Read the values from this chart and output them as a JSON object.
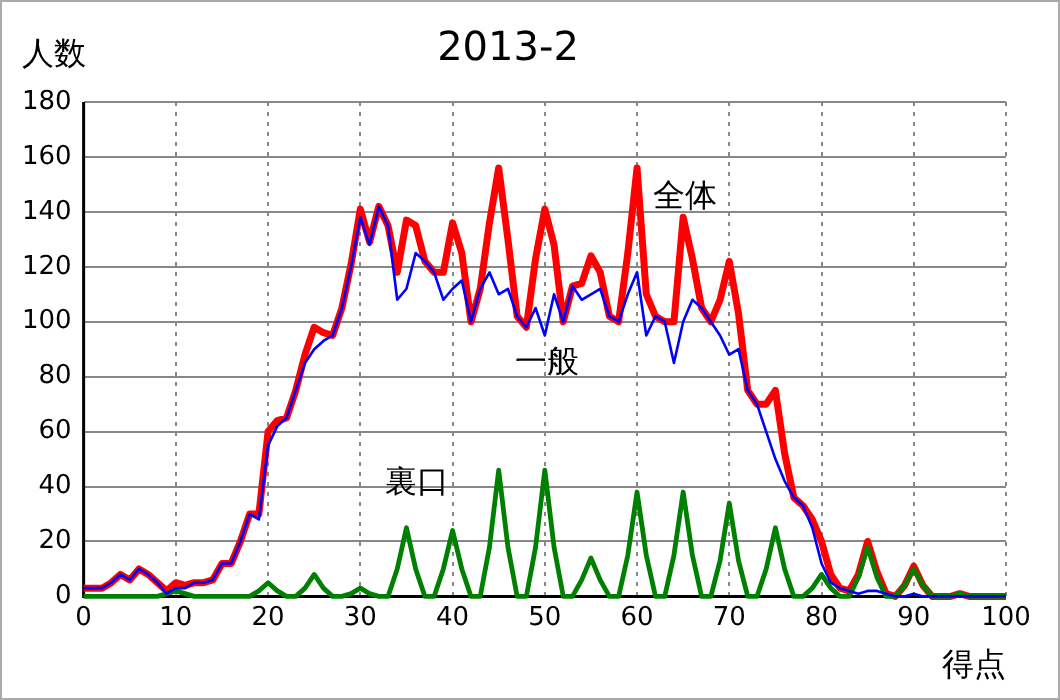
{
  "chart_data": {
    "type": "line",
    "title": "2013-2",
    "xlabel": "得点",
    "ylabel": "人数",
    "x": [
      0,
      1,
      2,
      3,
      4,
      5,
      6,
      7,
      8,
      9,
      10,
      11,
      12,
      13,
      14,
      15,
      16,
      17,
      18,
      19,
      20,
      21,
      22,
      23,
      24,
      25,
      26,
      27,
      28,
      29,
      30,
      31,
      32,
      33,
      34,
      35,
      36,
      37,
      38,
      39,
      40,
      41,
      42,
      43,
      44,
      45,
      46,
      47,
      48,
      49,
      50,
      51,
      52,
      53,
      54,
      55,
      56,
      57,
      58,
      59,
      60,
      61,
      62,
      63,
      64,
      65,
      66,
      67,
      68,
      69,
      70,
      71,
      72,
      73,
      74,
      75,
      76,
      77,
      78,
      79,
      80,
      81,
      82,
      83,
      84,
      85,
      86,
      87,
      88,
      89,
      90,
      91,
      92,
      93,
      94,
      95,
      96,
      97,
      98,
      99,
      100
    ],
    "series": [
      {
        "name": "全体",
        "color": "#ff0000",
        "values": [
          3,
          3,
          3,
          5,
          8,
          6,
          10,
          8,
          5,
          2,
          5,
          4,
          5,
          5,
          6,
          12,
          12,
          20,
          30,
          30,
          60,
          64,
          65,
          75,
          88,
          98,
          96,
          95,
          105,
          121,
          141,
          129,
          142,
          135,
          118,
          137,
          135,
          122,
          118,
          118,
          136,
          125,
          100,
          112,
          136,
          156,
          130,
          102,
          98,
          123,
          141,
          128,
          100,
          113,
          114,
          124,
          118,
          102,
          100,
          125,
          156,
          110,
          102,
          100,
          100,
          138,
          123,
          105,
          100,
          108,
          122,
          103,
          75,
          70,
          70,
          75,
          52,
          36,
          33,
          28,
          20,
          8,
          3,
          2,
          8,
          20,
          9,
          1,
          0,
          4,
          11,
          4,
          0,
          0,
          0,
          1,
          0,
          0,
          0,
          0,
          0
        ]
      },
      {
        "name": "一般",
        "color": "#0000ff",
        "values": [
          3,
          3,
          3,
          5,
          8,
          6,
          10,
          8,
          5,
          1,
          3,
          3,
          5,
          5,
          6,
          12,
          12,
          20,
          30,
          28,
          55,
          62,
          65,
          75,
          85,
          90,
          93,
          95,
          105,
          120,
          138,
          128,
          142,
          135,
          108,
          112,
          125,
          122,
          118,
          108,
          112,
          115,
          100,
          112,
          118,
          110,
          112,
          102,
          98,
          105,
          95,
          110,
          100,
          113,
          108,
          110,
          112,
          102,
          100,
          110,
          118,
          95,
          102,
          100,
          85,
          100,
          108,
          105,
          100,
          95,
          88,
          90,
          75,
          70,
          60,
          50,
          42,
          36,
          33,
          25,
          12,
          5,
          3,
          2,
          1,
          2,
          2,
          1,
          0,
          0,
          1,
          0,
          0,
          0,
          0,
          0,
          0,
          0,
          0,
          0,
          0
        ]
      },
      {
        "name": "裏口",
        "color": "#008000",
        "values": [
          0,
          0,
          0,
          0,
          0,
          0,
          0,
          0,
          0,
          1,
          2,
          1,
          0,
          0,
          0,
          0,
          0,
          0,
          0,
          2,
          5,
          2,
          0,
          0,
          3,
          8,
          3,
          0,
          0,
          1,
          3,
          1,
          0,
          0,
          10,
          25,
          10,
          0,
          0,
          10,
          24,
          10,
          0,
          0,
          18,
          46,
          18,
          0,
          0,
          18,
          46,
          18,
          0,
          0,
          6,
          14,
          6,
          0,
          0,
          15,
          38,
          15,
          0,
          0,
          15,
          38,
          15,
          0,
          0,
          13,
          34,
          13,
          0,
          0,
          10,
          25,
          10,
          0,
          0,
          3,
          8,
          3,
          0,
          0,
          7,
          18,
          7,
          0,
          0,
          4,
          10,
          4,
          0,
          0,
          0,
          1,
          0,
          0,
          0,
          0,
          0
        ]
      }
    ],
    "xlim": [
      0,
      100
    ],
    "xticks": [
      0,
      10,
      20,
      30,
      40,
      50,
      60,
      70,
      80,
      90,
      100
    ],
    "ylim": [
      0,
      180
    ],
    "yticks": [
      0,
      20,
      40,
      60,
      80,
      100,
      120,
      140,
      160,
      180
    ],
    "grid": true,
    "legend": false,
    "marker": "none",
    "line_style": "solid"
  }
}
